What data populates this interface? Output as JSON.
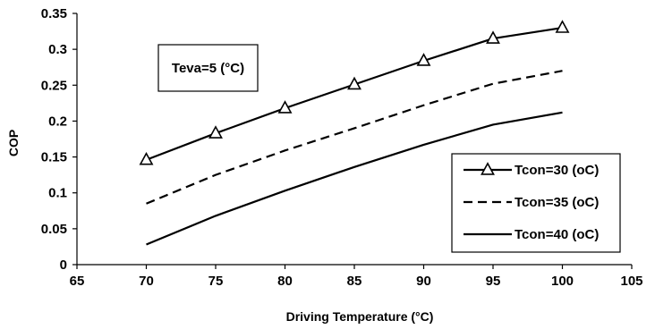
{
  "chart_data": {
    "type": "line",
    "xlabel": "Driving Temperature (°C)",
    "ylabel": "COP",
    "xlim": [
      65,
      105
    ],
    "ylim": [
      0,
      0.35
    ],
    "x_ticks": [
      "65",
      "70",
      "75",
      "80",
      "85",
      "90",
      "95",
      "100",
      "105"
    ],
    "y_ticks": [
      "0",
      "0.05",
      "0.1",
      "0.15",
      "0.2",
      "0.25",
      "0.3",
      "0.35"
    ],
    "grid": false,
    "legend_position": "bottom-right",
    "annotation": "Teva=5 (°C)",
    "series": [
      {
        "name": "Tcon=30 (oC)",
        "style": "solid-with-triangle-markers",
        "x": [
          70,
          75,
          80,
          85,
          90,
          95,
          100
        ],
        "y": [
          0.146,
          0.183,
          0.218,
          0.251,
          0.284,
          0.315,
          0.33
        ]
      },
      {
        "name": "Tcon=35 (oC)",
        "style": "dashed",
        "x": [
          70,
          75,
          80,
          85,
          90,
          95,
          100
        ],
        "y": [
          0.085,
          0.125,
          0.159,
          0.19,
          0.222,
          0.252,
          0.27
        ]
      },
      {
        "name": "Tcon=40 (oC)",
        "style": "solid",
        "x": [
          70,
          75,
          80,
          85,
          90,
          95,
          100
        ],
        "y": [
          0.028,
          0.068,
          0.103,
          0.136,
          0.167,
          0.195,
          0.212
        ]
      }
    ]
  },
  "colors": {
    "line": "#000000",
    "background": "#ffffff"
  }
}
